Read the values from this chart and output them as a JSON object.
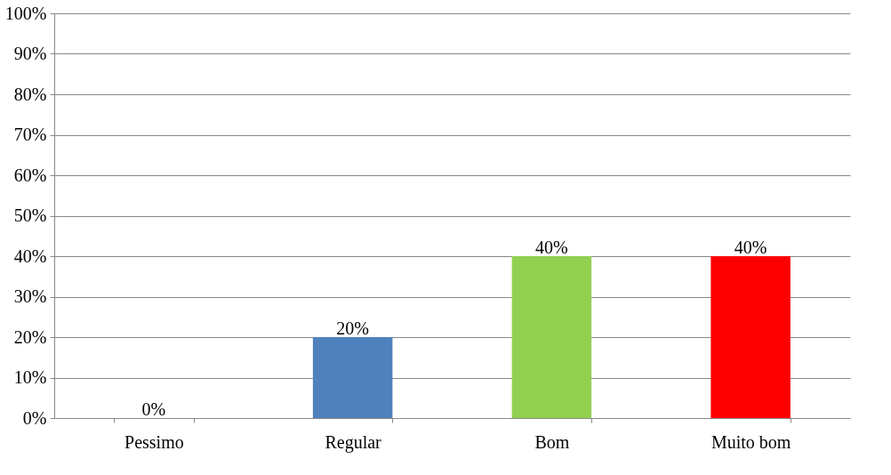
{
  "chart_data": {
    "type": "bar",
    "categories": [
      "Pessimo",
      "Regular",
      "Bom",
      "Muito bom"
    ],
    "values": [
      0,
      20,
      40,
      40
    ],
    "colors": [
      "#4f81bd",
      "#4f81bd",
      "#92d050",
      "#ff0000"
    ],
    "value_labels": [
      "0%",
      "20%",
      "40%",
      "40%"
    ],
    "ylim": [
      0,
      100
    ],
    "yticks": [
      {
        "value": 0,
        "label": "0%"
      },
      {
        "value": 10,
        "label": "10%"
      },
      {
        "value": 20,
        "label": "20%"
      },
      {
        "value": 30,
        "label": "30%"
      },
      {
        "value": 40,
        "label": "40%"
      },
      {
        "value": 50,
        "label": "50%"
      },
      {
        "value": 60,
        "label": "60%"
      },
      {
        "value": 70,
        "label": "70%"
      },
      {
        "value": 80,
        "label": "80%"
      },
      {
        "value": 90,
        "label": "90%"
      },
      {
        "value": 100,
        "label": "100%"
      }
    ],
    "grid": "y"
  }
}
